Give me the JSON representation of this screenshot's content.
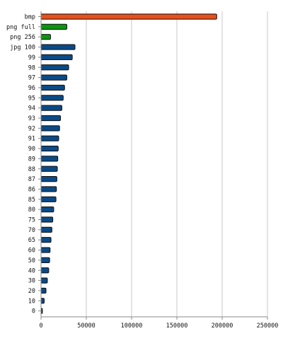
{
  "chart_data": {
    "type": "bar",
    "orientation": "horizontal",
    "title": "",
    "xlabel": "",
    "ylabel": "",
    "xlim": [
      0,
      250000
    ],
    "x_ticks": [
      0,
      50000,
      100000,
      150000,
      200000,
      250000
    ],
    "x_tick_labels": [
      "0",
      "50000",
      "100000",
      "150000",
      "200000",
      "250000"
    ],
    "grid": "vertical",
    "legend": "none",
    "categories": [
      "bmp",
      "png full",
      "png 256",
      "jpg 100",
      "99",
      "98",
      "97",
      "96",
      "95",
      "94",
      "93",
      "92",
      "91",
      "90",
      "89",
      "88",
      "87",
      "86",
      "85",
      "80",
      "75",
      "70",
      "65",
      "60",
      "50",
      "40",
      "30",
      "20",
      "10",
      "0"
    ],
    "values": [
      194000,
      28500,
      10500,
      37500,
      34500,
      30500,
      28500,
      26000,
      24500,
      23000,
      21500,
      20500,
      19500,
      19000,
      18500,
      18000,
      17500,
      17000,
      16500,
      14000,
      13000,
      12000,
      11000,
      10000,
      9500,
      8500,
      7000,
      5500,
      3500,
      1500
    ],
    "bar_colors": [
      "#e8501c",
      "#0e9410",
      "#0e9410",
      "#0a4a86",
      "#0a4a86",
      "#0a4a86",
      "#0a4a86",
      "#0a4a86",
      "#0a4a86",
      "#0a4a86",
      "#0a4a86",
      "#0a4a86",
      "#0a4a86",
      "#0a4a86",
      "#0a4a86",
      "#0a4a86",
      "#0a4a86",
      "#0a4a86",
      "#0a4a86",
      "#0a4a86",
      "#0a4a86",
      "#0a4a86",
      "#0a4a86",
      "#0a4a86",
      "#0a4a86",
      "#0a4a86",
      "#0a4a86",
      "#0a4a86",
      "#0a4a86",
      "#0a4a86"
    ],
    "colors": {
      "axis": "#888888",
      "grid": "#c8c8c8",
      "bar_stroke": "#111111"
    }
  }
}
